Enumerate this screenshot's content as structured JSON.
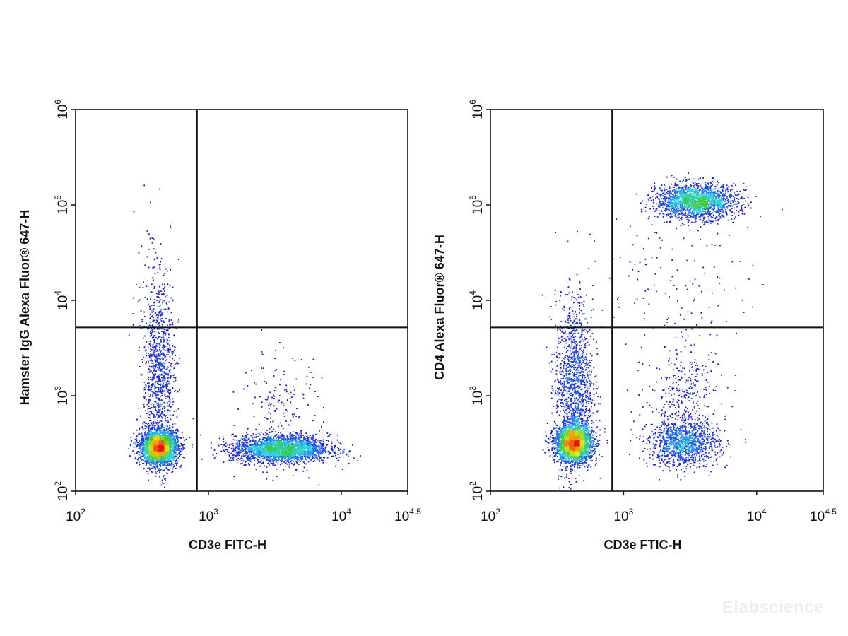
{
  "chart_data": [
    {
      "type": "scatter",
      "title": "",
      "xlabel": "CD3e FITC-H",
      "ylabel": "Hamster IgG Alexa Fluor® 647-H",
      "x_scale": "log10",
      "y_scale": "log10",
      "xlim": [
        100,
        31623
      ],
      "ylim": [
        100,
        1000000
      ],
      "x_ticks": [
        {
          "base": "10",
          "exp": "2"
        },
        {
          "base": "10",
          "exp": "3"
        },
        {
          "base": "10",
          "exp": "4"
        },
        {
          "base": "10",
          "exp": "4.5"
        }
      ],
      "y_ticks": [
        {
          "base": "10",
          "exp": "2"
        },
        {
          "base": "10",
          "exp": "3"
        },
        {
          "base": "10",
          "exp": "4"
        },
        {
          "base": "10",
          "exp": "5"
        },
        {
          "base": "10",
          "exp": "6"
        }
      ],
      "quadrant_gate": {
        "x": 820,
        "y": 5200
      },
      "populations": [
        {
          "center": [
            420,
            290
          ],
          "spread_decades": [
            0.07,
            0.09
          ],
          "events": 2600
        },
        {
          "center": [
            3500,
            280
          ],
          "spread_decades": [
            0.18,
            0.07
          ],
          "events": 2400
        },
        {
          "center": [
            420,
            1500
          ],
          "spread_decades": [
            0.06,
            0.45
          ],
          "events": 900
        },
        {
          "center": [
            3500,
            600
          ],
          "spread_decades": [
            0.15,
            0.35
          ],
          "events": 200
        },
        {
          "center": [
            400,
            12000
          ],
          "spread_decades": [
            0.08,
            0.4
          ],
          "events": 120
        }
      ],
      "grid": false,
      "legend": "none"
    },
    {
      "type": "scatter",
      "title": "",
      "xlabel": "CD3e FTIC-H",
      "ylabel": "CD4 Alexa Fluor® 647-H",
      "x_scale": "log10",
      "y_scale": "log10",
      "xlim": [
        100,
        31623
      ],
      "ylim": [
        100,
        1000000
      ],
      "x_ticks": [
        {
          "base": "10",
          "exp": "2"
        },
        {
          "base": "10",
          "exp": "3"
        },
        {
          "base": "10",
          "exp": "4"
        },
        {
          "base": "10",
          "exp": "4.5"
        }
      ],
      "y_ticks": [
        {
          "base": "10",
          "exp": "2"
        },
        {
          "base": "10",
          "exp": "3"
        },
        {
          "base": "10",
          "exp": "4"
        },
        {
          "base": "10",
          "exp": "5"
        },
        {
          "base": "10",
          "exp": "6"
        }
      ],
      "quadrant_gate": {
        "x": 820,
        "y": 5200
      },
      "populations": [
        {
          "center": [
            420,
            320
          ],
          "spread_decades": [
            0.07,
            0.1
          ],
          "events": 2200
        },
        {
          "center": [
            420,
            1300
          ],
          "spread_decades": [
            0.07,
            0.45
          ],
          "events": 1300
        },
        {
          "center": [
            3500,
            110000
          ],
          "spread_decades": [
            0.15,
            0.09
          ],
          "events": 1900
        },
        {
          "center": [
            2800,
            320
          ],
          "spread_decades": [
            0.13,
            0.12
          ],
          "events": 1100
        },
        {
          "center": [
            2800,
            900
          ],
          "spread_decades": [
            0.14,
            0.3
          ],
          "events": 350
        },
        {
          "center": [
            2000,
            15000
          ],
          "spread_decades": [
            0.3,
            0.4
          ],
          "events": 150
        }
      ],
      "grid": false,
      "legend": "none"
    }
  ],
  "watermark": "Elabscience"
}
